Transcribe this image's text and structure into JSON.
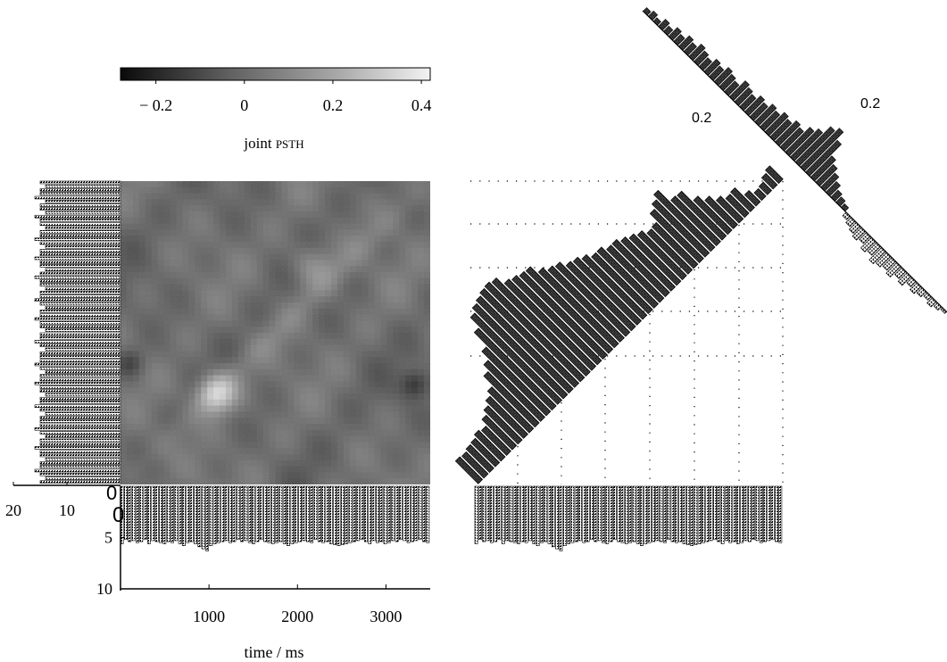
{
  "chart_data": [
    {
      "type": "heatmap",
      "title": "",
      "colorbar": {
        "label_main": "joint ",
        "label_caps": "PSTH",
        "range": [
          -0.28,
          0.42
        ],
        "tick_labels": [
          "− 0.2",
          "0",
          "0.2",
          "0.4"
        ],
        "tick_values": [
          -0.2,
          0,
          0.2,
          0.4
        ]
      },
      "xlabel": "time / ms",
      "x_range": [
        0,
        3500
      ],
      "x_tick_labels": [
        "1000",
        "2000",
        "3000"
      ],
      "x_tick_values": [
        1000,
        2000,
        3000
      ],
      "grid": false
    },
    {
      "type": "bar",
      "name": "left-psth",
      "tick_labels": [
        "20",
        "10",
        "0"
      ],
      "tick_values": [
        20,
        10,
        0
      ],
      "values": [
        15,
        14,
        15,
        15,
        16,
        14,
        15,
        15,
        14,
        16,
        15,
        15,
        14,
        15,
        15,
        16,
        15,
        14,
        15,
        15,
        16,
        15,
        15,
        14,
        15,
        16,
        15,
        15,
        14,
        15,
        15,
        16,
        15,
        14,
        15,
        15,
        16,
        15,
        15,
        14,
        15,
        15,
        16,
        15,
        14,
        15,
        15,
        15,
        16,
        15,
        14,
        15,
        15,
        16,
        15,
        15,
        14,
        15,
        15,
        16,
        15,
        14,
        15,
        15,
        15,
        16,
        15,
        14,
        15,
        15,
        16,
        15,
        15,
        14,
        15,
        15,
        16,
        15,
        14,
        15
      ]
    },
    {
      "type": "bar",
      "name": "bottom-psth",
      "tick_labels": [
        "0",
        "5",
        "10"
      ],
      "tick_values": [
        0,
        5,
        10
      ],
      "values": [
        5.6,
        5.2,
        5.4,
        5.3,
        5.5,
        5.4,
        5.2,
        5.6,
        5.3,
        5.4,
        5.5,
        5.6,
        5.4,
        5.5,
        5.3,
        5.6,
        5.8,
        5.5,
        5.4,
        5.6,
        5.9,
        6.1,
        6.3,
        5.8,
        5.6,
        5.5,
        5.4,
        5.3,
        5.5,
        5.4,
        5.2,
        5.4,
        5.3,
        5.5,
        5.6,
        5.4,
        5.2,
        5.4,
        5.5,
        5.6,
        5.5,
        5.4,
        5.6,
        5.8,
        5.6,
        5.5,
        5.4,
        5.3,
        5.4,
        5.5,
        5.2,
        5.4,
        5.5,
        5.4,
        5.6,
        5.7,
        5.8,
        5.7,
        5.6,
        5.5,
        5.4,
        5.3,
        5.2,
        5.4,
        5.6,
        5.3,
        5.5,
        5.4,
        5.6,
        5.5,
        5.3,
        5.4,
        5.2,
        5.3,
        5.5,
        5.4,
        5.3,
        5.2,
        5.4,
        5.5
      ]
    },
    {
      "type": "bar",
      "name": "coincidence-histogram",
      "tick_labels": [
        "0.2"
      ],
      "tick_values": [
        0.2
      ],
      "values": [
        0.02,
        0.03,
        0.02,
        0.04,
        0.03,
        0.05,
        0.04,
        0.06,
        0.05,
        0.07,
        0.06,
        0.05,
        0.07,
        0.06,
        0.08,
        0.07,
        0.06,
        0.09,
        0.08,
        0.07,
        0.09,
        0.08,
        0.1,
        0.09,
        0.11,
        0.1,
        0.12,
        0.11,
        0.14,
        0.16,
        0.2,
        0.22,
        0.18,
        0.12,
        0.1,
        0.08,
        0.06,
        0.04,
        0.03,
        0.02,
        -0.02,
        -0.03,
        -0.04,
        -0.05,
        -0.04,
        -0.06,
        -0.05,
        -0.07,
        -0.06,
        -0.05,
        -0.06,
        -0.04,
        -0.05,
        -0.03,
        -0.04,
        -0.03,
        -0.02,
        -0.03,
        -0.02,
        -0.01
      ]
    }
  ]
}
